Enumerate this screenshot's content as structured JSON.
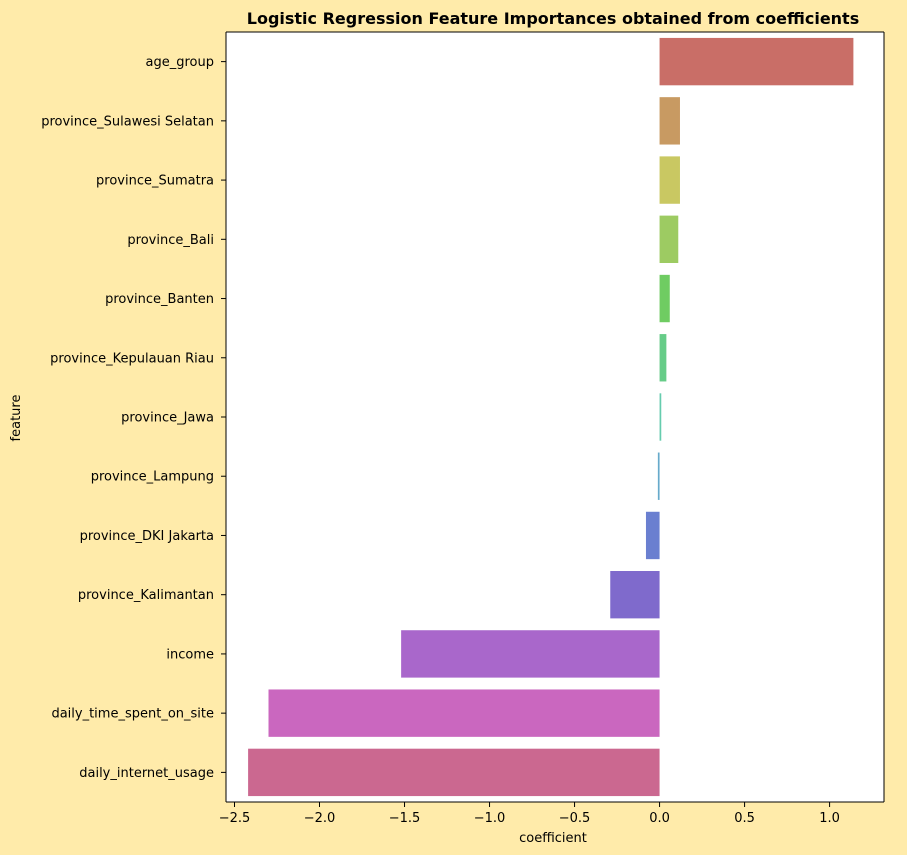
{
  "chart_data": {
    "type": "bar",
    "orientation": "horizontal",
    "title": "Logistic Regression Feature Importances obtained from coefficients",
    "xlabel": "coefficient",
    "ylabel": "feature",
    "xlim": [
      -2.55,
      1.32
    ],
    "xticks": [
      -2.5,
      -2.0,
      -1.5,
      -1.0,
      -0.5,
      0.0,
      0.5,
      1.0
    ],
    "xtick_labels": [
      "−2.5",
      "−2.0",
      "−1.5",
      "−1.0",
      "−0.5",
      "0.0",
      "0.5",
      "1.0"
    ],
    "grid": false,
    "legend": "none",
    "categories": [
      "age_group",
      "province_Sulawesi Selatan",
      "province_Sumatra",
      "province_Bali",
      "province_Banten",
      "province_Kepulauan Riau",
      "province_Jawa",
      "province_Lampung",
      "province_DKI Jakarta",
      "province_Kalimantan",
      "income",
      "daily_time_spent_on_site",
      "daily_internet_usage"
    ],
    "values": [
      1.14,
      0.12,
      0.12,
      0.11,
      0.06,
      0.04,
      0.01,
      -0.01,
      -0.08,
      -0.29,
      -1.52,
      -2.3,
      -2.42
    ],
    "colors": [
      "#C96E67",
      "#C89A62",
      "#C9C862",
      "#9DCB62",
      "#6FCC62",
      "#66CC88",
      "#66CCAE",
      "#67AACB",
      "#6A7FD0",
      "#7F6ACC",
      "#A967CB",
      "#CA67BF",
      "#CB6890"
    ]
  }
}
